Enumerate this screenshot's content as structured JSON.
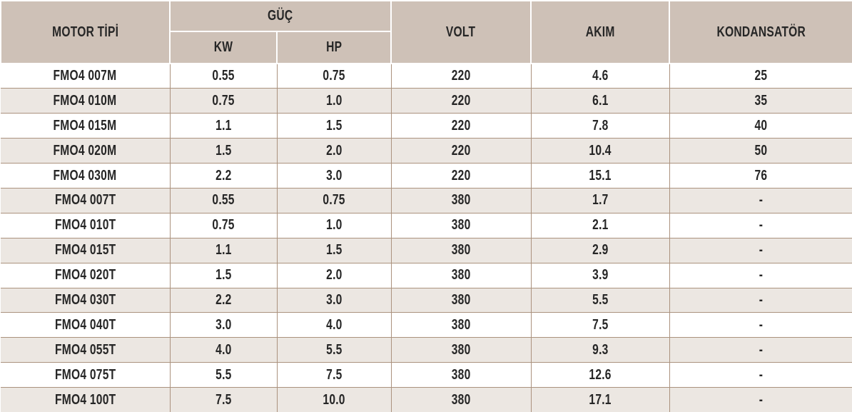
{
  "table": {
    "headers": {
      "motor_tipi": "MOTOR TİPİ",
      "guc": "GÜÇ",
      "kw": "KW",
      "hp": "HP",
      "volt": "VOLT",
      "akim": "AKIM",
      "kondansator": "KONDANSATÖR"
    },
    "rows": [
      {
        "motor_type": "FMO4 007M",
        "kw": "0.55",
        "hp": "0.75",
        "volt": "220",
        "akim": "4.6",
        "kondansator": "25"
      },
      {
        "motor_type": "FMO4 010M",
        "kw": "0.75",
        "hp": "1.0",
        "volt": "220",
        "akim": "6.1",
        "kondansator": "35"
      },
      {
        "motor_type": "FMO4 015M",
        "kw": "1.1",
        "hp": "1.5",
        "volt": "220",
        "akim": "7.8",
        "kondansator": "40"
      },
      {
        "motor_type": "FMO4 020M",
        "kw": "1.5",
        "hp": "2.0",
        "volt": "220",
        "akim": "10.4",
        "kondansator": "50"
      },
      {
        "motor_type": "FMO4 030M",
        "kw": "2.2",
        "hp": "3.0",
        "volt": "220",
        "akim": "15.1",
        "kondansator": "76"
      },
      {
        "motor_type": "FMO4 007T",
        "kw": "0.55",
        "hp": "0.75",
        "volt": "380",
        "akim": "1.7",
        "kondansator": "-"
      },
      {
        "motor_type": "FMO4 010T",
        "kw": "0.75",
        "hp": "1.0",
        "volt": "380",
        "akim": "2.1",
        "kondansator": "-"
      },
      {
        "motor_type": "FMO4 015T",
        "kw": "1.1",
        "hp": "1.5",
        "volt": "380",
        "akim": "2.9",
        "kondansator": "-"
      },
      {
        "motor_type": "FMO4 020T",
        "kw": "1.5",
        "hp": "2.0",
        "volt": "380",
        "akim": "3.9",
        "kondansator": "-"
      },
      {
        "motor_type": "FMO4 030T",
        "kw": "2.2",
        "hp": "3.0",
        "volt": "380",
        "akim": "5.5",
        "kondansator": "-"
      },
      {
        "motor_type": "FMO4 040T",
        "kw": "3.0",
        "hp": "4.0",
        "volt": "380",
        "akim": "7.5",
        "kondansator": "-"
      },
      {
        "motor_type": "FMO4 055T",
        "kw": "4.0",
        "hp": "5.5",
        "volt": "380",
        "akim": "9.3",
        "kondansator": "-"
      },
      {
        "motor_type": "FMO4 075T",
        "kw": "5.5",
        "hp": "7.5",
        "volt": "380",
        "akim": "12.6",
        "kondansator": "-"
      },
      {
        "motor_type": "FMO4 100T",
        "kw": "7.5",
        "hp": "10.0",
        "volt": "380",
        "akim": "17.1",
        "kondansator": "-"
      }
    ]
  },
  "colors": {
    "header_bg": "#cec1b7",
    "row_alt_bg": "#ece7e2",
    "row_bg": "#ffffff",
    "border": "#ab927e",
    "header_divider": "#ffffff",
    "text": "#262626"
  }
}
